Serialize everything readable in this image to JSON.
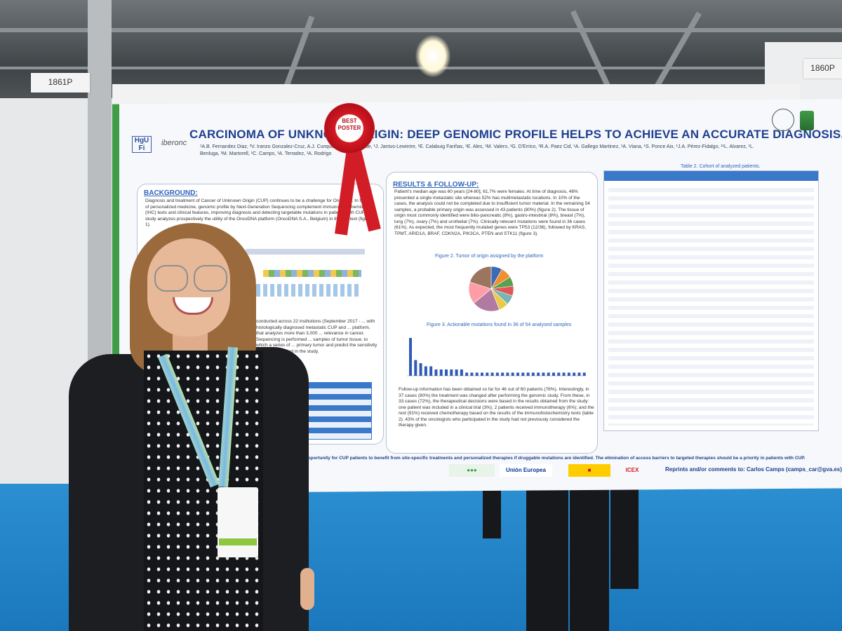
{
  "hall": {
    "booth_signs": [
      "1861P",
      "1860P"
    ]
  },
  "poster": {
    "title": "CARCINOMA OF UNKNOWN ORIGIN: DEEP GENOMIC PROFILE HELPS TO ACHIEVE AN ACCURATE DIAGNOSIS.",
    "authors": "¹A.B. Fernandez Diaz, ²V. Iranzo Gonzalez-Cruz, A.J. Cunquero, Arda Andrade, ¹J. Jantus-Lewintre, ¹E. Calabuig Fariñas, ¹E. Ales, ¹M. Valero, ¹G. D'Errico, ¹R.A. Paez Cid, ¹A. Gallego Martinez, ¹A. Viana, ¹S. Ponce Aix, ¹J.A. Pérez-Fidalgo, ¹¹L. Alvarez, ¹L. Benluga, ¹M. Martorell, ¹C. Camps, ¹A. Terradez, ¹A. Rodrigo",
    "logo_left": "HgU Fi",
    "logo_iberonc": "iberonc",
    "sections": {
      "background_title": "BACKGROUND:",
      "background_text": "Diagnosis and treatment of Cancer of Unknown Origin (CUP) continues to be a challenge for Oncology. In the era of personalized medicine, genomic profile by Next-Generation Sequencing complement immunohistochemistry (IHC) texts and clinical features, improving diagnosis and detecting targetable mutations in patients with CUP. This study analyzes prospectively the utility of the OncoDNA platform (OncoDNA S.A., Belgium) in this context (figure 1).",
      "methods_text": "conducted across 22 institutions (September 2017 - ... with histologically diagnosed metastatic CUP and ... platform, that analyzes more than 3,000 ... relevance in cancer. Sequencing is performed ... samples of tumor tissue, to which a series of ... primary tumor and predict the sensitivity to ... and analyzed in the study.",
      "results_title": "RESULTS & FOLLOW-UP:",
      "results_text": "Patient's median age was 60 years [24-80], 61.7% were females. At time of diagnosis, 48% presented a single metastatic site whereas 52% has multimetastatic locations. In 10% of the cases, the analysis could not be completed due to insufficient tumor material. In the remaining 54 samples, a probable primary origin was assessed in 43 patients (80%) (figure 2). The tissue of origin most commonly identified were bilio-pancreatic (8%), gastro-intestinal (8%), breast (7%), lung (7%), ovary (7%) and urothelial (7%). Clinically relevant mutations were found in 36 cases (61%). As expected, the most frequently mutated genes were TP53 (12/36), followed by KRAS, TPMT, ARID1A, BRAF, CDKN2A, PIK3CA, PTEN and STK11 (figure 3).",
      "figure2_title": "Figure 2. Tumor of origin assigned by the platform",
      "figure3_title": "Figure 3. Actionable mutations found in 36 of 54 analysed samples",
      "followup_text": "Follow-up information has been obtained so far for 46 out of 60 patients (76%). Interestingly, in 37 cases (80%) the treatment was changed after performing the genomic study. From these, in 33 cases (72%), the therapeutical decisions were based in the results obtained from the study: one patient was included in a clinical trial (3%); 2 patients received immunotherapy (6%); and the rest (91%) received chemotherapy based on the results of the immunohistochemistry texts (table 2). 43% of the oncologists who participated in the study had not previously considered the therapy given.",
      "table2_title": "Table 2. Cohort of analyzed patients.",
      "conclusion_text": "...an opportunity for CUP patients to benefit from site-specific treatments and personalized therapies if druggable mutations are identified. The elimination of access barriers to targeted therapies should be a priority in patients with CUP.",
      "reprints": "Reprints and/or comments to: Carlos Camps (camps_car@gva.es)"
    },
    "sponsors": [
      "ICEX",
      "Unión Europea"
    ]
  },
  "rosette": {
    "line1": "BEST",
    "line2": "POSTER"
  },
  "colors": {
    "poster_green": "#3f9c48",
    "poster_blue": "#1f3f8f",
    "floor_blue": "#1b78bd",
    "rosette_red": "#d21d26"
  },
  "chart_data": [
    {
      "type": "pie",
      "values": [
        8,
        8,
        7,
        7,
        7,
        7,
        20,
        16,
        20
      ],
      "colors": [
        "#3b6bb5",
        "#f28e2b",
        "#59a14f",
        "#e15759",
        "#76b7b2",
        "#edc948",
        "#b07aa1",
        "#ff9da7",
        "#9c755f"
      ]
    },
    {
      "type": "bar",
      "values": [
        12,
        5,
        4,
        3,
        3,
        2,
        2,
        2,
        2,
        2,
        2,
        1,
        1,
        1,
        1,
        1,
        1,
        1,
        1,
        1,
        1,
        1,
        1,
        1,
        1,
        1,
        1,
        1,
        1,
        1,
        1,
        1,
        1,
        1,
        1
      ]
    }
  ]
}
